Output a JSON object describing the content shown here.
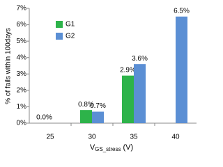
{
  "chart_data": {
    "type": "bar",
    "ylabel": "% of fails within 100days",
    "xlabel": {
      "main": "V",
      "sub": "GS_stress",
      "unit": "(V)"
    },
    "categories": [
      "25",
      "30",
      "35",
      "40"
    ],
    "series": [
      {
        "name": "G1",
        "color": "#2db34a",
        "values": [
          0.0,
          0.8,
          2.9,
          null
        ],
        "value_labels": [
          "0.0%",
          "0.8%",
          "2.9%",
          null
        ]
      },
      {
        "name": "G2",
        "color": "#5b8fd4",
        "values": [
          null,
          0.7,
          3.6,
          6.5
        ],
        "value_labels": [
          null,
          "0.7%",
          "3.6%",
          "6.5%"
        ]
      }
    ],
    "ylim": [
      0,
      7
    ],
    "yticks": [
      {
        "value": 0,
        "label": "0%"
      },
      {
        "value": 1,
        "label": "1%"
      },
      {
        "value": 2,
        "label": "2%"
      },
      {
        "value": 3,
        "label": "3%"
      },
      {
        "value": 4,
        "label": "4%"
      },
      {
        "value": 5,
        "label": "5%"
      },
      {
        "value": 6,
        "label": "6%"
      },
      {
        "value": 7,
        "label": "7%"
      }
    ],
    "grid": false,
    "legend": "top-left"
  }
}
